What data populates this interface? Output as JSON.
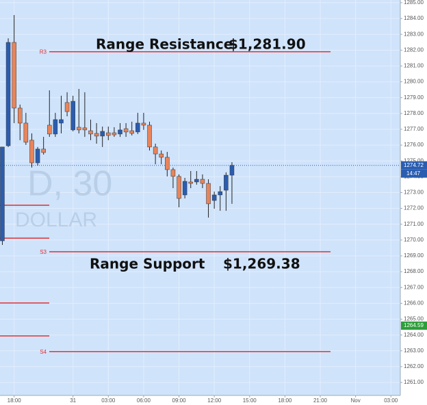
{
  "chart_data": {
    "type": "candlestick",
    "up_color": "#2a5db0",
    "down_color": "#e8845a",
    "background": "#cfe3fb",
    "grid_color": "#e3eefc",
    "grid": true,
    "watermark": [
      "D, 30",
      "DOLLAR"
    ],
    "annotations": [
      "Range Resistance",
      "$1,281.90",
      "Range Support",
      "$1,269.38"
    ],
    "x": [
      -1,
      0,
      1,
      2,
      3,
      4,
      5,
      6,
      7,
      8,
      9,
      10,
      11,
      12,
      13,
      14,
      15,
      16,
      17,
      18,
      19,
      20,
      21,
      22,
      23,
      24,
      25,
      26,
      27,
      28,
      29,
      30,
      31,
      32,
      33,
      34,
      35,
      36,
      37,
      38
    ],
    "open": [
      1269.95,
      1275.96,
      1282.49,
      1278.34,
      1277.39,
      1276.31,
      1274.88,
      1275.75,
      1277.26,
      1276.7,
      1277.39,
      1278.69,
      1276.96,
      1277.13,
      1277.09,
      1276.91,
      1276.74,
      1276.57,
      1276.78,
      1276.78,
      1276.7,
      1277.04,
      1276.91,
      1276.83,
      1277.39,
      1277.26,
      1275.88,
      1275.44,
      1275.23,
      1274.45,
      1274.02,
      1272.85,
      1273.67,
      1273.67,
      1273.84,
      1273.58,
      1272.5,
      1272.85,
      1273.15,
      1274.1
    ],
    "high": [
      1275.88,
      1282.75,
      1284.22,
      1278.56,
      1278.04,
      1276.74,
      1275.88,
      1276.52,
      1279.46,
      1278.04,
      1279.12,
      1279.34,
      1279.12,
      1279.55,
      1279.34,
      1277.61,
      1277.39,
      1277.17,
      1277.17,
      1277.13,
      1277.39,
      1277.39,
      1277.48,
      1278.04,
      1278.04,
      1277.48,
      1276.09,
      1275.66,
      1275.57,
      1274.58,
      1274.15,
      1273.93,
      1274.36,
      1274.36,
      1274.15,
      1273.84,
      1273.06,
      1273.41,
      1274.28,
      1274.92
    ],
    "low": [
      1269.69,
      1275.88,
      1277.39,
      1276.31,
      1276.01,
      1274.58,
      1274.71,
      1275.4,
      1276.52,
      1276.52,
      1276.74,
      1277.82,
      1276.87,
      1276.74,
      1276.52,
      1276.31,
      1276.09,
      1275.88,
      1276.31,
      1276.52,
      1276.52,
      1276.52,
      1276.61,
      1276.7,
      1276.96,
      1275.66,
      1274.79,
      1274.79,
      1274.02,
      1273.28,
      1272.07,
      1272.63,
      1273.28,
      1273.5,
      1273.28,
      1271.42,
      1271.98,
      1271.85,
      1271.85,
      1272.29
    ],
    "close": [
      1275.88,
      1282.49,
      1278.34,
      1277.39,
      1276.18,
      1274.88,
      1275.75,
      1275.53,
      1276.7,
      1277.61,
      1277.61,
      1278.12,
      1278.77,
      1276.96,
      1276.96,
      1276.7,
      1276.57,
      1276.87,
      1276.61,
      1276.65,
      1276.96,
      1276.83,
      1276.74,
      1277.39,
      1277.26,
      1275.88,
      1275.44,
      1275.23,
      1274.45,
      1274.02,
      1272.63,
      1273.71,
      1273.58,
      1273.84,
      1273.58,
      1272.29,
      1272.85,
      1273.06,
      1274.1,
      1274.72
    ],
    "levels": [
      {
        "name": "R3",
        "value": 1281.9,
        "color": "#e03030"
      },
      {
        "name": "S3",
        "value": 1269.26,
        "color": "#e03030"
      },
      {
        "name": "S4",
        "value": 1262.95,
        "color": "#e03030"
      }
    ],
    "short_levels": [
      1272.2,
      1270.12,
      1266.02,
      1263.94
    ],
    "last_price": {
      "value": 1274.72,
      "label": "1274.72",
      "color": "#2a5db0"
    },
    "countdown": "14:47",
    "marker_price": {
      "value": 1264.59,
      "label": "1264.59",
      "color": "#2e9e3a"
    },
    "xlim": [
      -1.4,
      66.6
    ],
    "xticks": [
      {
        "value": 1,
        "label": "18:00"
      },
      {
        "value": 11,
        "label": "31"
      },
      {
        "value": 17,
        "label": "03:00"
      },
      {
        "value": 23,
        "label": "06:00"
      },
      {
        "value": 29,
        "label": "09:00"
      },
      {
        "value": 35,
        "label": "12:00"
      },
      {
        "value": 41,
        "label": "15:00"
      },
      {
        "value": 47,
        "label": "18:00"
      },
      {
        "value": 53,
        "label": "21:00"
      },
      {
        "value": 59,
        "label": "Nov"
      },
      {
        "value": 65,
        "label": "03:00"
      }
    ],
    "ylim": [
      1260.18,
      1285.17
    ],
    "yticks": [
      {
        "value": 1261,
        "label": "1261.00"
      },
      {
        "value": 1262,
        "label": "1262.00"
      },
      {
        "value": 1263,
        "label": "1263.00"
      },
      {
        "value": 1264,
        "label": "1264.00"
      },
      {
        "value": 1265,
        "label": "1265.00"
      },
      {
        "value": 1266,
        "label": "1266.00"
      },
      {
        "value": 1267,
        "label": "1267.00"
      },
      {
        "value": 1268,
        "label": "1268.00"
      },
      {
        "value": 1269,
        "label": "1269.00"
      },
      {
        "value": 1270,
        "label": "1270.00"
      },
      {
        "value": 1271,
        "label": "1271.00"
      },
      {
        "value": 1272,
        "label": "1272.00"
      },
      {
        "value": 1273,
        "label": "1273.00"
      },
      {
        "value": 1274,
        "label": "1274.00"
      },
      {
        "value": 1275,
        "label": "1275.00"
      },
      {
        "value": 1276,
        "label": "1276.00"
      },
      {
        "value": 1277,
        "label": "1277.00"
      },
      {
        "value": 1278,
        "label": "1278.00"
      },
      {
        "value": 1279,
        "label": "1279.00"
      },
      {
        "value": 1280,
        "label": "1280.00"
      },
      {
        "value": 1281,
        "label": "1281.00"
      },
      {
        "value": 1282,
        "label": "1282.00"
      },
      {
        "value": 1283,
        "label": "1283.00"
      },
      {
        "value": 1284,
        "label": "1284.00"
      },
      {
        "value": 1285,
        "label": "1285.00"
      }
    ]
  }
}
